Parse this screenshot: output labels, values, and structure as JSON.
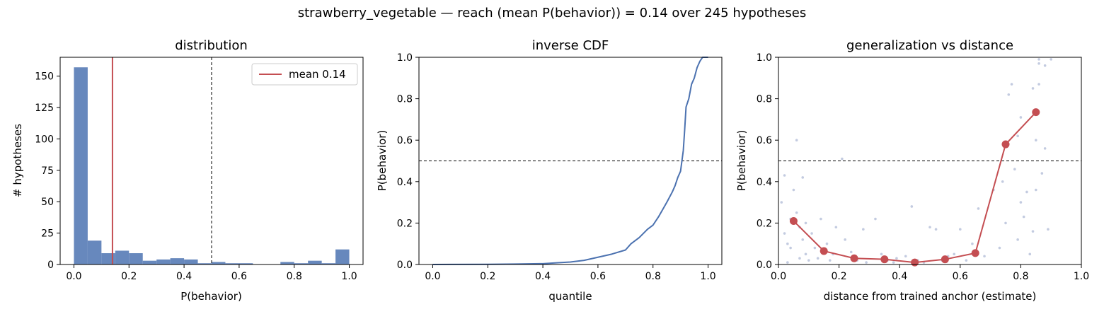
{
  "suptitle": "strawberry_vegetable  —  reach (mean P(behavior)) = 0.14  over 245 hypotheses",
  "colors": {
    "bar": "#6788bd",
    "mean": "#c44e52",
    "line": "#4c72b0",
    "red": "#c44e52",
    "scatter": "#c3cbe0"
  },
  "chart_data": [
    {
      "type": "bar",
      "title": "distribution",
      "xlabel": "P(behavior)",
      "ylabel": "# hypotheses",
      "xlim": [
        -0.05,
        1.05
      ],
      "ylim": [
        0,
        165
      ],
      "xticks": [
        "0.0",
        "0.2",
        "0.4",
        "0.6",
        "0.8",
        "1.0"
      ],
      "yticks": [
        "0",
        "25",
        "50",
        "75",
        "100",
        "125",
        "150"
      ],
      "bin_width": 0.05,
      "bins": [
        0.0,
        0.05,
        0.1,
        0.15,
        0.2,
        0.25,
        0.3,
        0.35,
        0.4,
        0.45,
        0.5,
        0.55,
        0.6,
        0.65,
        0.7,
        0.75,
        0.8,
        0.85,
        0.9,
        0.95
      ],
      "counts": [
        157,
        19,
        9,
        11,
        9,
        3,
        4,
        5,
        4,
        1,
        2,
        1,
        1,
        0,
        0,
        2,
        1,
        3,
        1,
        12
      ],
      "mean": 0.14,
      "mean_label": "mean 0.14",
      "threshold": 0.5,
      "legend": "top-right"
    },
    {
      "type": "line",
      "title": "inverse CDF",
      "xlabel": "quantile",
      "ylabel": "P(behavior)",
      "xlim": [
        -0.05,
        1.05
      ],
      "ylim": [
        0,
        1
      ],
      "xticks": [
        "0.0",
        "0.2",
        "0.4",
        "0.6",
        "0.8",
        "1.0"
      ],
      "yticks": [
        "0.0",
        "0.2",
        "0.4",
        "0.6",
        "0.8",
        "1.0"
      ],
      "threshold": 0.5,
      "x": [
        0.0,
        0.2,
        0.3,
        0.4,
        0.45,
        0.5,
        0.55,
        0.6,
        0.65,
        0.7,
        0.72,
        0.75,
        0.78,
        0.8,
        0.82,
        0.85,
        0.87,
        0.88,
        0.89,
        0.9,
        0.905,
        0.91,
        0.915,
        0.92,
        0.93,
        0.94,
        0.95,
        0.96,
        0.97,
        0.98,
        1.0
      ],
      "y": [
        0.0,
        0.001,
        0.002,
        0.004,
        0.008,
        0.012,
        0.02,
        0.035,
        0.05,
        0.07,
        0.1,
        0.13,
        0.17,
        0.19,
        0.23,
        0.3,
        0.35,
        0.38,
        0.42,
        0.45,
        0.5,
        0.55,
        0.65,
        0.76,
        0.8,
        0.87,
        0.9,
        0.95,
        0.98,
        1.0,
        1.0
      ]
    },
    {
      "type": "scatter",
      "title": "generalization vs distance",
      "xlabel": "distance from trained anchor (estimate)",
      "ylabel": "P(behavior)",
      "xlim": [
        0,
        1
      ],
      "ylim": [
        0,
        1
      ],
      "xticks": [
        "0.0",
        "0.2",
        "0.4",
        "0.6",
        "0.8",
        "1.0"
      ],
      "yticks": [
        "0.0",
        "0.2",
        "0.4",
        "0.6",
        "0.8",
        "1.0"
      ],
      "threshold": 0.5,
      "binned_means": {
        "x": [
          0.05,
          0.15,
          0.25,
          0.35,
          0.45,
          0.55,
          0.65,
          0.75,
          0.85
        ],
        "y": [
          0.21,
          0.065,
          0.03,
          0.025,
          0.01,
          0.025,
          0.055,
          0.58,
          0.735
        ]
      },
      "points": [
        [
          0.01,
          0.3
        ],
        [
          0.02,
          0.43
        ],
        [
          0.03,
          0.1
        ],
        [
          0.04,
          0.22
        ],
        [
          0.05,
          0.36
        ],
        [
          0.06,
          0.6
        ],
        [
          0.07,
          0.18
        ],
        [
          0.08,
          0.42
        ],
        [
          0.09,
          0.05
        ],
        [
          0.02,
          0.15
        ],
        [
          0.04,
          0.08
        ],
        [
          0.06,
          0.25
        ],
        [
          0.08,
          0.12
        ],
        [
          0.1,
          0.02
        ],
        [
          0.03,
          0.01
        ],
        [
          0.07,
          0.03
        ],
        [
          0.09,
          0.2
        ],
        [
          0.11,
          0.15
        ],
        [
          0.12,
          0.08
        ],
        [
          0.14,
          0.22
        ],
        [
          0.16,
          0.1
        ],
        [
          0.18,
          0.05
        ],
        [
          0.19,
          0.18
        ],
        [
          0.13,
          0.03
        ],
        [
          0.17,
          0.02
        ],
        [
          0.21,
          0.51
        ],
        [
          0.22,
          0.12
        ],
        [
          0.24,
          0.06
        ],
        [
          0.26,
          0.02
        ],
        [
          0.28,
          0.17
        ],
        [
          0.29,
          0.01
        ],
        [
          0.32,
          0.22
        ],
        [
          0.34,
          0.05
        ],
        [
          0.36,
          0.02
        ],
        [
          0.38,
          0.01
        ],
        [
          0.39,
          0.03
        ],
        [
          0.42,
          0.04
        ],
        [
          0.44,
          0.28
        ],
        [
          0.46,
          0.02
        ],
        [
          0.48,
          0.01
        ],
        [
          0.5,
          0.18
        ],
        [
          0.52,
          0.17
        ],
        [
          0.54,
          0.02
        ],
        [
          0.56,
          0.04
        ],
        [
          0.58,
          0.05
        ],
        [
          0.6,
          0.17
        ],
        [
          0.62,
          0.02
        ],
        [
          0.64,
          0.1
        ],
        [
          0.66,
          0.27
        ],
        [
          0.68,
          0.04
        ],
        [
          0.71,
          0.36
        ],
        [
          0.73,
          0.08
        ],
        [
          0.74,
          0.4
        ],
        [
          0.75,
          0.2
        ],
        [
          0.76,
          0.82
        ],
        [
          0.77,
          0.87
        ],
        [
          0.78,
          0.46
        ],
        [
          0.79,
          0.12
        ],
        [
          0.8,
          0.3
        ],
        [
          0.8,
          0.71
        ],
        [
          0.81,
          0.23
        ],
        [
          0.82,
          0.35
        ],
        [
          0.83,
          0.05
        ],
        [
          0.84,
          0.85
        ],
        [
          0.85,
          0.6
        ],
        [
          0.85,
          0.36
        ],
        [
          0.86,
          0.97
        ],
        [
          0.86,
          0.87
        ],
        [
          0.87,
          0.44
        ],
        [
          0.88,
          0.56
        ],
        [
          0.88,
          0.96
        ],
        [
          0.89,
          0.17
        ],
        [
          0.9,
          0.99
        ],
        [
          0.84,
          0.16
        ],
        [
          0.79,
          0.62
        ],
        [
          0.86,
          0.99
        ]
      ]
    }
  ]
}
